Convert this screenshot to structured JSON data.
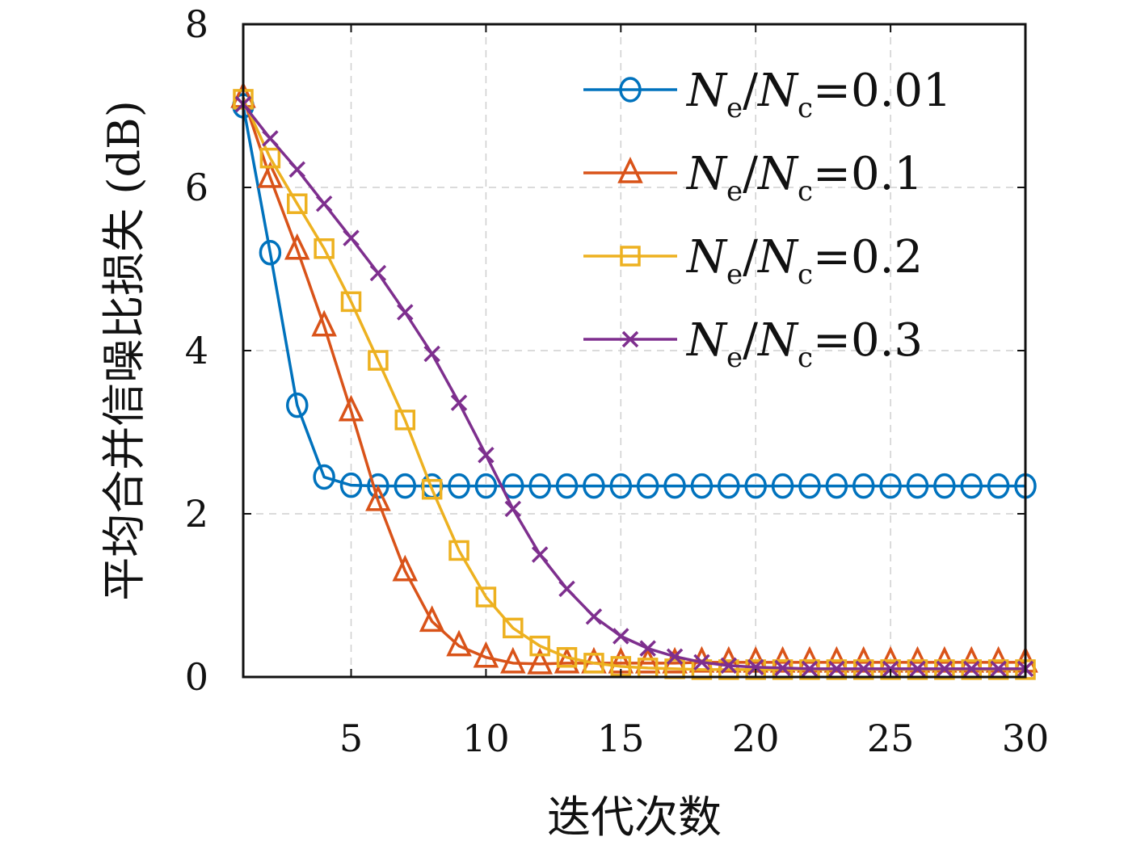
{
  "chart_data": {
    "type": "line",
    "title": "",
    "xlabel": "迭代次数",
    "ylabel": "平均合并信噪比损失 (dB)",
    "xlim": [
      1,
      30
    ],
    "ylim": [
      0,
      8
    ],
    "xticks": [
      5,
      10,
      15,
      20,
      25,
      30
    ],
    "yticks": [
      0,
      2,
      4,
      6,
      8
    ],
    "grid": true,
    "legend_position": "top-right",
    "x": [
      1,
      2,
      3,
      4,
      5,
      6,
      7,
      8,
      9,
      10,
      11,
      12,
      13,
      14,
      15,
      16,
      17,
      18,
      19,
      20,
      21,
      22,
      23,
      24,
      25,
      26,
      27,
      28,
      29,
      30
    ],
    "series": [
      {
        "name": "N_e/N_c=0.01",
        "legend_sub1": "e",
        "legend_sub2": "c",
        "legend_value": "=0.01",
        "color": "#0072BD",
        "marker": "circle",
        "values": [
          7.0,
          5.2,
          3.33,
          2.45,
          2.35,
          2.34,
          2.34,
          2.34,
          2.34,
          2.34,
          2.34,
          2.34,
          2.34,
          2.34,
          2.34,
          2.34,
          2.34,
          2.34,
          2.34,
          2.34,
          2.34,
          2.34,
          2.34,
          2.34,
          2.34,
          2.34,
          2.34,
          2.34,
          2.34,
          2.34
        ]
      },
      {
        "name": "N_e/N_c=0.1",
        "legend_sub1": "e",
        "legend_sub2": "c",
        "legend_value": "=0.1",
        "color": "#D95319",
        "marker": "triangle",
        "values": [
          7.1,
          6.12,
          5.24,
          4.3,
          3.26,
          2.16,
          1.3,
          0.68,
          0.38,
          0.24,
          0.17,
          0.16,
          0.17,
          0.17,
          0.17,
          0.17,
          0.17,
          0.18,
          0.18,
          0.18,
          0.18,
          0.18,
          0.18,
          0.18,
          0.18,
          0.18,
          0.18,
          0.18,
          0.18,
          0.18
        ]
      },
      {
        "name": "N_e/N_c=0.2",
        "legend_sub1": "e",
        "legend_sub2": "c",
        "legend_value": "=0.2",
        "color": "#EDB120",
        "marker": "square",
        "values": [
          7.08,
          6.36,
          5.8,
          5.25,
          4.6,
          3.88,
          3.15,
          2.3,
          1.55,
          0.98,
          0.6,
          0.38,
          0.24,
          0.17,
          0.13,
          0.11,
          0.1,
          0.09,
          0.09,
          0.09,
          0.09,
          0.09,
          0.09,
          0.09,
          0.09,
          0.09,
          0.09,
          0.09,
          0.09,
          0.09
        ]
      },
      {
        "name": "N_e/N_c=0.3",
        "legend_sub1": "e",
        "legend_sub2": "c",
        "legend_value": "=0.3",
        "color": "#7E2F8E",
        "marker": "x",
        "values": [
          7.02,
          6.6,
          6.22,
          5.8,
          5.38,
          4.95,
          4.47,
          3.96,
          3.36,
          2.72,
          2.06,
          1.5,
          1.08,
          0.74,
          0.5,
          0.35,
          0.25,
          0.18,
          0.14,
          0.12,
          0.11,
          0.1,
          0.1,
          0.1,
          0.1,
          0.1,
          0.1,
          0.1,
          0.1,
          0.1
        ]
      }
    ]
  },
  "legend": {
    "main_letter": "N"
  }
}
